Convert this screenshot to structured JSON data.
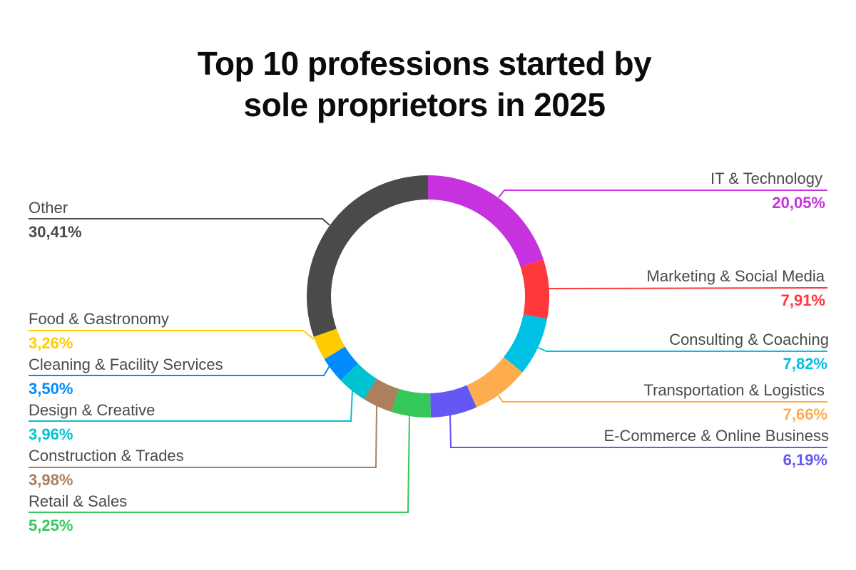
{
  "title": {
    "line1": "Top 10 professions started by",
    "line2": "sole proprietors in 2025"
  },
  "chart_data": {
    "type": "pie",
    "subtype": "donut",
    "title": "Top 10 professions started by sole proprietors in 2025",
    "categories": [
      "IT & Technology",
      "Marketing & Social Media",
      "Consulting & Coaching",
      "Transportation & Logistics",
      "E-Commerce & Online Business",
      "Retail & Sales",
      "Construction & Trades",
      "Design & Creative",
      "Cleaning & Facility Services",
      "Food & Gastronomy",
      "Other"
    ],
    "values": [
      20.05,
      7.91,
      7.82,
      7.66,
      6.19,
      5.25,
      3.98,
      3.96,
      3.5,
      3.26,
      30.41
    ],
    "value_labels": [
      "20,05%",
      "7,91%",
      "7,82%",
      "7,66%",
      "6,19%",
      "5,25%",
      "3,98%",
      "3,96%",
      "3,50%",
      "3,26%",
      "30,41%"
    ],
    "colors": [
      "#c632de",
      "#ff383c",
      "#00c0e4",
      "#fead4e",
      "#6357f5",
      "#35c759",
      "#ac7f5e",
      "#00c3cf",
      "#008cff",
      "#ffcc00",
      "#4a4a4a"
    ],
    "start_angle": "12 o'clock",
    "direction": "clockwise",
    "legend_position": "leader-line labels"
  },
  "labels": {
    "it": {
      "name": "IT & Technology",
      "value": "20,05%",
      "color": "#c632de"
    },
    "marketing": {
      "name": "Marketing & Social Media",
      "value": "7,91%",
      "color": "#ff383c"
    },
    "consulting": {
      "name": "Consulting & Coaching",
      "value": "7,82%",
      "color": "#00c0e4"
    },
    "transport": {
      "name": "Transportation & Logistics",
      "value": "7,66%",
      "color": "#fead4e"
    },
    "ecommerce": {
      "name": "E-Commerce & Online Business",
      "value": "6,19%",
      "color": "#6357f5"
    },
    "retail": {
      "name": "Retail & Sales",
      "value": "5,25%",
      "color": "#35c759"
    },
    "construction": {
      "name": "Construction & Trades",
      "value": "3,98%",
      "color": "#ac7f5e"
    },
    "design": {
      "name": "Design & Creative",
      "value": "3,96%",
      "color": "#00c3cf"
    },
    "cleaning": {
      "name": "Cleaning & Facility Services",
      "value": "3,50%",
      "color": "#008cff"
    },
    "food": {
      "name": "Food & Gastronomy",
      "value": "3,26%",
      "color": "#ffcc00"
    },
    "other": {
      "name": "Other",
      "value": "30,41%",
      "color": "#4a4a4a"
    }
  }
}
